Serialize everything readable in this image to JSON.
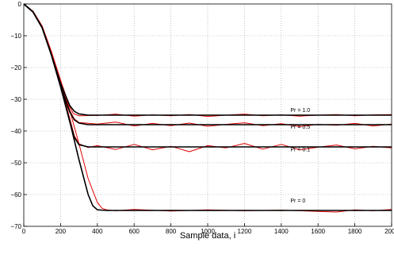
{
  "chart_data": {
    "type": "line",
    "title": "",
    "xlabel": "Sample data, i",
    "ylabel": "",
    "xlim": [
      0,
      2000
    ],
    "ylim": [
      -70,
      0
    ],
    "x_ticks": [
      0,
      200,
      400,
      600,
      800,
      1000,
      1200,
      1400,
      1600,
      1800,
      2000
    ],
    "x_tick_labels": [
      "0",
      "200",
      "400",
      "600",
      "800",
      "1000",
      "1200",
      "1400",
      "1600",
      "1800",
      "2000"
    ],
    "y_ticks": [
      0,
      -10,
      -20,
      -30,
      -40,
      -50,
      -60,
      -70
    ],
    "y_tick_labels": [
      "0",
      "−10",
      "−20",
      "−30",
      "−40",
      "−50",
      "−60",
      "−70"
    ],
    "grid": true,
    "legend": "none",
    "colors": {
      "theory": "#000000",
      "simulation": "#e00000",
      "grid": "#9a9a9a"
    },
    "series": [
      {
        "label": "Pr = 1.0",
        "kind": "theory",
        "steady_state": -35,
        "x": [
          0,
          50,
          100,
          150,
          200,
          250,
          275,
          300,
          350,
          400,
          500,
          600,
          800,
          1000,
          1200,
          1400,
          1600,
          1800,
          2000
        ],
        "y": [
          0,
          -2.5,
          -7.5,
          -16,
          -25,
          -32,
          -33.8,
          -34.6,
          -35,
          -35,
          -35,
          -35,
          -35,
          -35,
          -35,
          -35,
          -35,
          -35,
          -35
        ]
      },
      {
        "label": "Pr = 0.5",
        "kind": "theory",
        "steady_state": -38,
        "x": [
          0,
          50,
          100,
          150,
          200,
          250,
          275,
          300,
          350,
          400,
          500,
          600,
          800,
          1000,
          1200,
          1400,
          1600,
          1800,
          2000
        ],
        "y": [
          0,
          -2.5,
          -7.5,
          -16,
          -26,
          -34,
          -36.5,
          -37.5,
          -38,
          -38,
          -38,
          -38,
          -38,
          -38,
          -38,
          -38,
          -38,
          -38,
          -38
        ]
      },
      {
        "label": "Pr = 0.1",
        "kind": "theory",
        "steady_state": -45,
        "x": [
          0,
          50,
          100,
          150,
          200,
          250,
          275,
          300,
          350,
          400,
          500,
          600,
          800,
          1000,
          1200,
          1400,
          1600,
          1800,
          2000
        ],
        "y": [
          0,
          -2.5,
          -7.5,
          -16,
          -26,
          -37,
          -42,
          -44.3,
          -45,
          -45,
          -45,
          -45,
          -45,
          -45,
          -45,
          -45,
          -45,
          -45,
          -45
        ]
      },
      {
        "label": "Pr = 0",
        "kind": "theory",
        "steady_state": -65,
        "x": [
          0,
          50,
          100,
          150,
          200,
          250,
          300,
          350,
          375,
          400,
          450,
          500,
          600,
          800,
          1000,
          1200,
          1400,
          1600,
          1800,
          2000
        ],
        "y": [
          0,
          -2.5,
          -7.5,
          -16,
          -26,
          -37,
          -49,
          -60,
          -63.5,
          -64.8,
          -65,
          -65,
          -65,
          -65,
          -65,
          -65,
          -65,
          -65,
          -65,
          -65
        ]
      },
      {
        "label": "Pr = 1.0",
        "kind": "simulation",
        "steady_state": -35,
        "x": [
          0,
          50,
          100,
          150,
          200,
          250,
          270,
          300,
          400,
          500,
          600,
          700,
          800,
          900,
          1000,
          1100,
          1200,
          1300,
          1400,
          1500,
          1600,
          1700,
          1800,
          1900,
          2000
        ],
        "y": [
          0,
          -2.3,
          -7,
          -15,
          -24,
          -32.5,
          -34.5,
          -35.2,
          -35.1,
          -34.7,
          -35.3,
          -34.9,
          -35.2,
          -34.8,
          -35.4,
          -35.0,
          -34.7,
          -35.2,
          -34.9,
          -35.3,
          -35.0,
          -34.8,
          -35.2,
          -34.9,
          -34.8
        ]
      },
      {
        "label": "Pr = 0.5",
        "kind": "simulation",
        "steady_state": -38,
        "x": [
          0,
          50,
          100,
          150,
          200,
          250,
          275,
          300,
          400,
          500,
          600,
          700,
          800,
          900,
          1000,
          1100,
          1200,
          1300,
          1400,
          1500,
          1600,
          1700,
          1800,
          1900,
          2000
        ],
        "y": [
          0,
          -2.3,
          -7,
          -15,
          -25,
          -33.5,
          -36.2,
          -37.3,
          -37.8,
          -37.2,
          -38.4,
          -37.6,
          -38.3,
          -37.5,
          -38.5,
          -37.9,
          -37.4,
          -38.3,
          -37.7,
          -38.6,
          -37.9,
          -38.2,
          -37.6,
          -38.4,
          -37.8
        ]
      },
      {
        "label": "Pr = 0.1",
        "kind": "simulation",
        "steady_state": -45,
        "x": [
          0,
          50,
          100,
          150,
          200,
          250,
          275,
          300,
          350,
          400,
          500,
          600,
          700,
          800,
          900,
          1000,
          1100,
          1200,
          1300,
          1400,
          1500,
          1600,
          1700,
          1800,
          1900,
          2000
        ],
        "y": [
          0,
          -2.3,
          -7,
          -15,
          -25,
          -36,
          -41.5,
          -44,
          -45.2,
          -44.6,
          -45.8,
          -44.2,
          -45.9,
          -44.8,
          -46.5,
          -44.6,
          -45.3,
          -43.9,
          -45.7,
          -44.2,
          -45.9,
          -45.1,
          -44.4,
          -45.6,
          -44.8,
          -45.3
        ]
      },
      {
        "label": "Pr = 0",
        "kind": "simulation",
        "steady_state": -65,
        "x": [
          0,
          50,
          100,
          150,
          200,
          250,
          300,
          350,
          400,
          425,
          450,
          500,
          600,
          800,
          1000,
          1200,
          1400,
          1600,
          1700,
          1800,
          1900,
          2000
        ],
        "y": [
          0,
          -2.3,
          -7,
          -15,
          -24,
          -33.5,
          -44,
          -55,
          -62.5,
          -64.3,
          -64.8,
          -65.1,
          -64.7,
          -65.2,
          -64.8,
          -65.1,
          -64.9,
          -65.3,
          -65.5,
          -64.8,
          -65.1,
          -64.7
        ]
      }
    ],
    "annotations": [
      {
        "text": "Pr = 1.0",
        "x": 1450,
        "y": -34
      },
      {
        "text": "Pr = 0.5",
        "x": 1450,
        "y": -39.2
      },
      {
        "text": "Pr = 0.1",
        "x": 1450,
        "y": -46.4
      },
      {
        "text": "Pr = 0",
        "x": 1450,
        "y": -62.5
      }
    ]
  }
}
